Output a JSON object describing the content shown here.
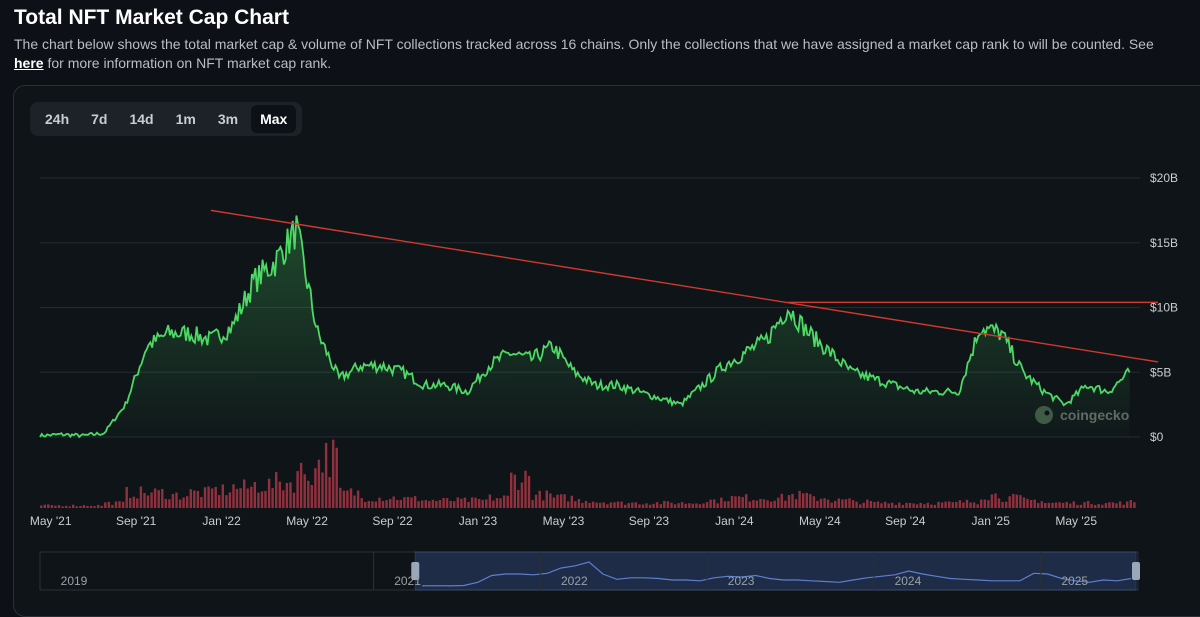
{
  "header": {
    "title": "Total NFT Market Cap Chart",
    "description": "The chart below shows the total market cap & volume of NFT collections tracked across 16 chains. Only the collections that we have assigned a market cap rank to will be counted. See",
    "link_text": "here",
    "description_tail": "for more information on NFT market cap rank."
  },
  "range_tabs": [
    {
      "label": "24h",
      "active": false
    },
    {
      "label": "7d",
      "active": false
    },
    {
      "label": "14d",
      "active": false
    },
    {
      "label": "1m",
      "active": false
    },
    {
      "label": "3m",
      "active": false
    },
    {
      "label": "Max",
      "active": true
    }
  ],
  "watermark": "coingecko",
  "colors": {
    "market_cap_line": "#4cd964",
    "volume_bars": "#c0394b",
    "trend_lines": "#d0392b",
    "navigator_line": "#5b7fd1",
    "grid": "#242b31"
  },
  "chart_data": {
    "type": "line",
    "title": "Total NFT Market Cap Chart",
    "y_ticks": [
      "$0",
      "$5B",
      "$10B",
      "$15B",
      "$20B"
    ],
    "ylim": [
      0,
      20
    ],
    "x_ticks": [
      "May '21",
      "Sep '21",
      "Jan '22",
      "May '22",
      "Sep '22",
      "Jan '23",
      "May '23",
      "Sep '23",
      "Jan '24",
      "May '24",
      "Sep '24",
      "Jan '25",
      "May '25"
    ],
    "series": [
      {
        "type": "line",
        "x": [
          "2021-04",
          "2021-05",
          "2021-06",
          "2021-07",
          "2021-08",
          "2021-09",
          "2021-10",
          "2021-11",
          "2021-12",
          "2022-01",
          "2022-02",
          "2022-03",
          "2022-04",
          "2022-05",
          "2022-06",
          "2022-07",
          "2022-08",
          "2022-09",
          "2022-10",
          "2022-11",
          "2022-12",
          "2023-01",
          "2023-02",
          "2023-03",
          "2023-04",
          "2023-05",
          "2023-06",
          "2023-07",
          "2023-08",
          "2023-09",
          "2023-10",
          "2023-11",
          "2023-12",
          "2024-01",
          "2024-02",
          "2024-03",
          "2024-04",
          "2024-05",
          "2024-06",
          "2024-07",
          "2024-08",
          "2024-09",
          "2024-10",
          "2024-11",
          "2024-12",
          "2025-01",
          "2025-02",
          "2025-03",
          "2025-04",
          "2025-05",
          "2025-06",
          "2025-07"
        ],
        "values": [
          0.1,
          0.2,
          0.1,
          0.3,
          2.5,
          7.0,
          8.0,
          8.0,
          7.5,
          8.5,
          12.0,
          13.5,
          16.0,
          8.0,
          4.5,
          5.5,
          5.5,
          5.0,
          4.0,
          4.0,
          3.5,
          5.5,
          6.5,
          6.0,
          7.0,
          5.0,
          4.0,
          4.0,
          3.5,
          3.0,
          2.5,
          4.0,
          5.5,
          6.5,
          7.5,
          10.0,
          8.0,
          6.5,
          5.0,
          4.5,
          4.0,
          3.5,
          3.5,
          3.5,
          8.5,
          8.0,
          5.0,
          3.5,
          2.5,
          4.0,
          3.5,
          5.0
        ]
      },
      {
        "type": "bar",
        "x": [
          "2021-04",
          "2021-05",
          "2021-06",
          "2021-07",
          "2021-08",
          "2021-09",
          "2021-10",
          "2021-11",
          "2021-12",
          "2022-01",
          "2022-02",
          "2022-03",
          "2022-04",
          "2022-05",
          "2022-06",
          "2022-07",
          "2022-08",
          "2022-09",
          "2022-10",
          "2022-11",
          "2022-12",
          "2023-01",
          "2023-02",
          "2023-03",
          "2023-04",
          "2023-05",
          "2023-06",
          "2023-07",
          "2023-08",
          "2023-09",
          "2023-10",
          "2023-11",
          "2023-12",
          "2024-01",
          "2024-02",
          "2024-03",
          "2024-04",
          "2024-05",
          "2024-06",
          "2024-07",
          "2024-08",
          "2024-09",
          "2024-10",
          "2024-11",
          "2024-12",
          "2025-01",
          "2025-02",
          "2025-03",
          "2025-04",
          "2025-05",
          "2025-06",
          "2025-07"
        ],
        "values": [
          0.05,
          0.05,
          0.05,
          0.1,
          0.3,
          0.3,
          0.25,
          0.3,
          0.35,
          0.4,
          0.45,
          0.5,
          0.7,
          1.0,
          0.3,
          0.2,
          0.2,
          0.18,
          0.15,
          0.15,
          0.15,
          0.2,
          0.6,
          0.25,
          0.2,
          0.15,
          0.12,
          0.1,
          0.1,
          0.1,
          0.1,
          0.15,
          0.2,
          0.2,
          0.2,
          0.25,
          0.2,
          0.15,
          0.12,
          0.1,
          0.1,
          0.1,
          0.1,
          0.12,
          0.25,
          0.2,
          0.15,
          0.1,
          0.1,
          0.1,
          0.1,
          0.12
        ]
      }
    ],
    "annotations": [
      {
        "type": "trend_line",
        "from": {
          "x": "2021-12",
          "y": 17.5
        },
        "to": {
          "x": "2025-07",
          "y": 5.8
        }
      },
      {
        "type": "horizontal_line",
        "from": {
          "x": "2024-03",
          "y": 10.4
        },
        "to": {
          "x": "2025-07",
          "y": 10.4
        }
      }
    ],
    "navigator": {
      "ticks": [
        "2019",
        "2021",
        "2022",
        "2023",
        "2024",
        "2025"
      ],
      "selected_range": [
        "2021-04",
        "2025-07"
      ]
    },
    "grid": true
  }
}
